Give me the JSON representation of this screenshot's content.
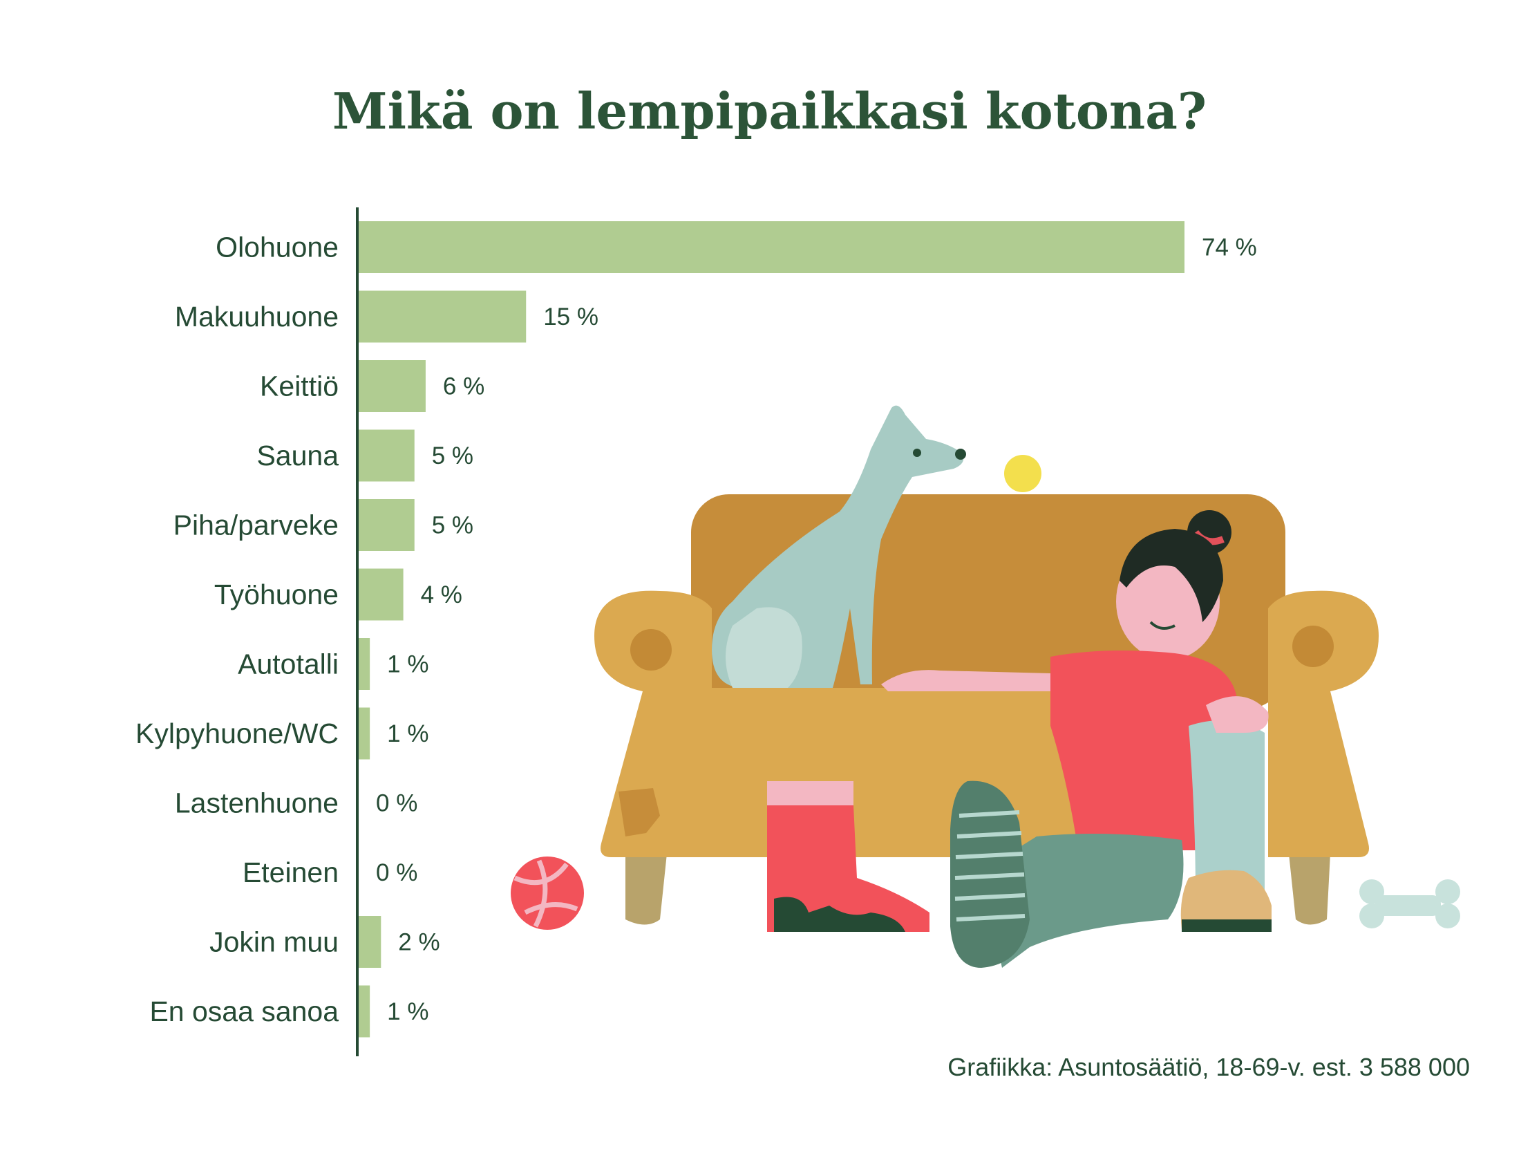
{
  "title": "Mikä on lempipaikkasi kotona?",
  "source": "Grafiikka: Asuntosäätiö, 18-69-v. est. 3 588 000",
  "colors": {
    "bar": "#b0cc91",
    "text": "#254a34",
    "axis": "#254a34"
  },
  "chart_data": {
    "type": "bar",
    "orientation": "horizontal",
    "title": "Mikä on lempipaikkasi kotona?",
    "categories": [
      "Olohuone",
      "Makuuhuone",
      "Keittiö",
      "Sauna",
      "Piha/parveke",
      "Työhuone",
      "Autotalli",
      "Kylpyhuone/WC",
      "Lastenhuone",
      "Eteinen",
      "Jokin muu",
      "En osaa sanoa"
    ],
    "values": [
      74,
      15,
      6,
      5,
      5,
      4,
      1,
      1,
      0,
      0,
      2,
      1
    ],
    "value_labels": [
      "74 %",
      "15 %",
      "6 %",
      "5 %",
      "5 %",
      "4 %",
      "1 %",
      "1 %",
      "0 %",
      "0 %",
      "2 %",
      "1 %"
    ],
    "unit": "%",
    "grid": false,
    "legend": "none"
  },
  "illustration": {
    "icons": [
      "sofa",
      "dog",
      "tennis-ball",
      "person",
      "rain-boot",
      "sneaker",
      "red-ball",
      "dog-bone"
    ]
  }
}
